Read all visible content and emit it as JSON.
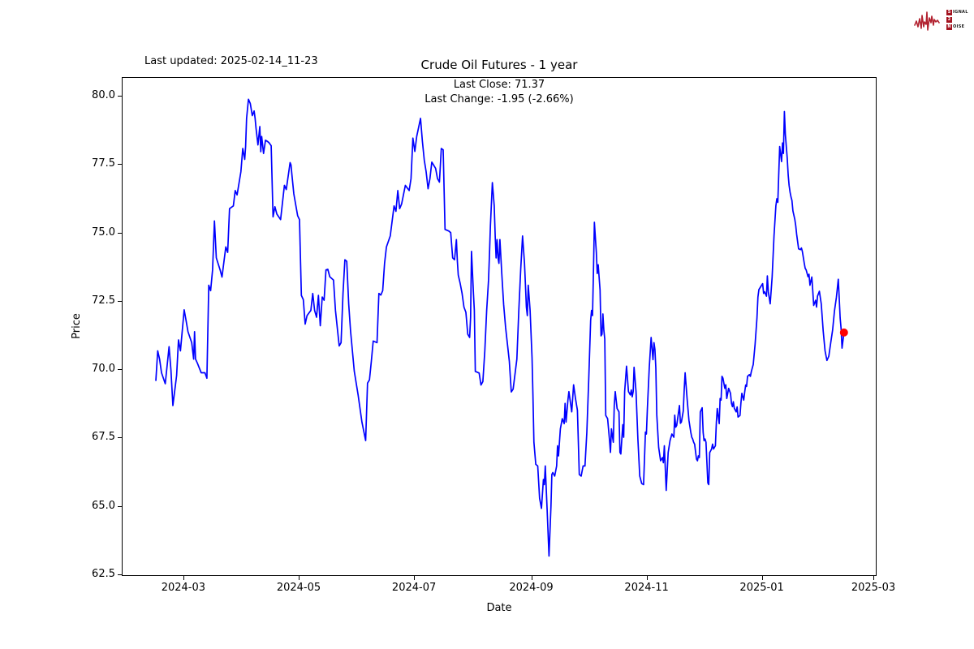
{
  "header": {
    "last_updated": "Last updated: 2025-02-14_11-23",
    "title": "Crude Oil Futures - 1 year",
    "annotation_line1": "Last Close: 71.37",
    "annotation_line2": "Last Change: -1.95 (-2.66%)"
  },
  "logo": {
    "box1": "S",
    "rest1": "IGNAL",
    "box2": "2",
    "box3": "N",
    "rest3": "OISE",
    "accent_color": "#b22230"
  },
  "chart_data": {
    "type": "line",
    "title": "Crude Oil Futures - 1 year",
    "xlabel": "Date",
    "ylabel": "Price",
    "grid": false,
    "legend": "none",
    "line_color": "#0000ff",
    "last_point_color": "#ff0000",
    "last_close": 71.37,
    "last_change": -1.95,
    "last_change_pct": -2.66,
    "x_unit": "days since 2024-02-15",
    "xlim": [
      -17.6,
      381.7
    ],
    "ylim": [
      62.44,
      80.68
    ],
    "x_ticks": [
      {
        "value": 15,
        "label": "2024-03"
      },
      {
        "value": 76,
        "label": "2024-05"
      },
      {
        "value": 137,
        "label": "2024-07"
      },
      {
        "value": 199,
        "label": "2024-09"
      },
      {
        "value": 260,
        "label": "2024-11"
      },
      {
        "value": 321,
        "label": "2025-01"
      },
      {
        "value": 380,
        "label": "2025-03"
      }
    ],
    "y_ticks": [
      62.5,
      65.0,
      67.5,
      70.0,
      72.5,
      75.0,
      77.5,
      80.0
    ],
    "points": [
      [
        0,
        69.6
      ],
      [
        1,
        70.7
      ],
      [
        2,
        70.4
      ],
      [
        3,
        69.9
      ],
      [
        5,
        69.5
      ],
      [
        7,
        70.85
      ],
      [
        8,
        70.0
      ],
      [
        9,
        68.7
      ],
      [
        11,
        69.8
      ],
      [
        12,
        71.1
      ],
      [
        13,
        70.7
      ],
      [
        15,
        72.2
      ],
      [
        16,
        71.8
      ],
      [
        17,
        71.4
      ],
      [
        19,
        71.0
      ],
      [
        20,
        70.4
      ],
      [
        20.5,
        71.4
      ],
      [
        21,
        70.4
      ],
      [
        22,
        70.25
      ],
      [
        24,
        69.9
      ],
      [
        26,
        69.9
      ],
      [
        27,
        69.7
      ],
      [
        28,
        73.1
      ],
      [
        29,
        72.9
      ],
      [
        30,
        73.66
      ],
      [
        31,
        75.45
      ],
      [
        32,
        74.1
      ],
      [
        34,
        73.66
      ],
      [
        35,
        73.4
      ],
      [
        37,
        74.5
      ],
      [
        38,
        74.3
      ],
      [
        39,
        75.9
      ],
      [
        41,
        76.0
      ],
      [
        42,
        76.56
      ],
      [
        43,
        76.4
      ],
      [
        45,
        77.25
      ],
      [
        46,
        78.1
      ],
      [
        47,
        77.7
      ],
      [
        47.5,
        78.17
      ],
      [
        48,
        79.2
      ],
      [
        49,
        79.9
      ],
      [
        50,
        79.74
      ],
      [
        51,
        79.3
      ],
      [
        52,
        79.47
      ],
      [
        52.5,
        79.2
      ],
      [
        53,
        78.85
      ],
      [
        54,
        78.23
      ],
      [
        55,
        78.9
      ],
      [
        55.5,
        77.98
      ],
      [
        56,
        78.54
      ],
      [
        57,
        77.92
      ],
      [
        58,
        78.4
      ],
      [
        59,
        78.36
      ],
      [
        60,
        78.3
      ],
      [
        61,
        78.2
      ],
      [
        62,
        75.6
      ],
      [
        63,
        75.97
      ],
      [
        64,
        75.7
      ],
      [
        66,
        75.5
      ],
      [
        68,
        76.75
      ],
      [
        69,
        76.6
      ],
      [
        71,
        77.58
      ],
      [
        71.5,
        77.5
      ],
      [
        72,
        77.12
      ],
      [
        73,
        76.44
      ],
      [
        75,
        75.64
      ],
      [
        76,
        75.5
      ],
      [
        77,
        72.73
      ],
      [
        78,
        72.57
      ],
      [
        79,
        71.68
      ],
      [
        80,
        71.99
      ],
      [
        82,
        72.18
      ],
      [
        83,
        72.8
      ],
      [
        84,
        72.18
      ],
      [
        85,
        71.93
      ],
      [
        86,
        72.73
      ],
      [
        87,
        71.62
      ],
      [
        88,
        72.67
      ],
      [
        89,
        72.55
      ],
      [
        90,
        73.66
      ],
      [
        91,
        73.68
      ],
      [
        92,
        73.41
      ],
      [
        94,
        73.29
      ],
      [
        95,
        72.18
      ],
      [
        97,
        70.88
      ],
      [
        98,
        71.0
      ],
      [
        99,
        72.8
      ],
      [
        100,
        74.03
      ],
      [
        101,
        73.97
      ],
      [
        102,
        72.42
      ],
      [
        103,
        71.43
      ],
      [
        105,
        69.95
      ],
      [
        107,
        69.09
      ],
      [
        109,
        68.1
      ],
      [
        111,
        67.42
      ],
      [
        112,
        69.52
      ],
      [
        113,
        69.64
      ],
      [
        114,
        70.32
      ],
      [
        115,
        71.06
      ],
      [
        117,
        71.0
      ],
      [
        118,
        72.8
      ],
      [
        119,
        72.74
      ],
      [
        120,
        72.9
      ],
      [
        121,
        73.9
      ],
      [
        122,
        74.5
      ],
      [
        124,
        74.9
      ],
      [
        126,
        76.0
      ],
      [
        127,
        75.8
      ],
      [
        128,
        76.56
      ],
      [
        129,
        75.9
      ],
      [
        130,
        76.07
      ],
      [
        132,
        76.75
      ],
      [
        134,
        76.56
      ],
      [
        135,
        77.0
      ],
      [
        136,
        78.48
      ],
      [
        137,
        77.99
      ],
      [
        138,
        78.54
      ],
      [
        140,
        79.2
      ],
      [
        141,
        78.36
      ],
      [
        142,
        77.68
      ],
      [
        143,
        77.25
      ],
      [
        144,
        76.63
      ],
      [
        145,
        77.0
      ],
      [
        146,
        77.6
      ],
      [
        148,
        77.37
      ],
      [
        149,
        77.0
      ],
      [
        150,
        76.87
      ],
      [
        151,
        78.1
      ],
      [
        152,
        78.05
      ],
      [
        153,
        75.14
      ],
      [
        155,
        75.08
      ],
      [
        156,
        75.02
      ],
      [
        157,
        74.1
      ],
      [
        158,
        74.03
      ],
      [
        159,
        74.77
      ],
      [
        159.5,
        73.97
      ],
      [
        160,
        73.47
      ],
      [
        161,
        73.16
      ],
      [
        162,
        72.8
      ],
      [
        163,
        72.3
      ],
      [
        164,
        72.11
      ],
      [
        165,
        71.31
      ],
      [
        166,
        71.19
      ],
      [
        166.5,
        71.93
      ],
      [
        167,
        74.34
      ],
      [
        168,
        72.8
      ],
      [
        168.5,
        72.18
      ],
      [
        169,
        69.95
      ],
      [
        171,
        69.89
      ],
      [
        172,
        69.45
      ],
      [
        173,
        69.58
      ],
      [
        174,
        70.69
      ],
      [
        175,
        72.18
      ],
      [
        176,
        73.29
      ],
      [
        176.5,
        74.28
      ],
      [
        177,
        75.27
      ],
      [
        178,
        76.85
      ],
      [
        179,
        76.0
      ],
      [
        179.5,
        74.9
      ],
      [
        180,
        74.1
      ],
      [
        180.5,
        74.77
      ],
      [
        181,
        74.1
      ],
      [
        181.5,
        73.9
      ],
      [
        182,
        74.77
      ],
      [
        183,
        73.53
      ],
      [
        184,
        72.4
      ],
      [
        185,
        71.56
      ],
      [
        186,
        70.94
      ],
      [
        187,
        70.32
      ],
      [
        188,
        69.2
      ],
      [
        189,
        69.3
      ],
      [
        191,
        70.4
      ],
      [
        192,
        72.18
      ],
      [
        193,
        73.66
      ],
      [
        194,
        74.9
      ],
      [
        195,
        73.9
      ],
      [
        195.5,
        73.16
      ],
      [
        196,
        72.3
      ],
      [
        196.5,
        71.99
      ],
      [
        197,
        73.1
      ],
      [
        198,
        72.18
      ],
      [
        199,
        70.44
      ],
      [
        199.5,
        69.08
      ],
      [
        200,
        67.36
      ],
      [
        201,
        66.55
      ],
      [
        202,
        66.49
      ],
      [
        203,
        65.31
      ],
      [
        204,
        64.94
      ],
      [
        205,
        66.0
      ],
      [
        205.5,
        65.81
      ],
      [
        206,
        66.49
      ],
      [
        207,
        64.88
      ],
      [
        208,
        63.2
      ],
      [
        209,
        65.01
      ],
      [
        209.5,
        66.18
      ],
      [
        210,
        66.25
      ],
      [
        211,
        66.12
      ],
      [
        212,
        66.49
      ],
      [
        212.5,
        67.23
      ],
      [
        213,
        66.86
      ],
      [
        214,
        67.85
      ],
      [
        214.5,
        68.04
      ],
      [
        215,
        68.22
      ],
      [
        216,
        68.04
      ],
      [
        216.5,
        68.78
      ],
      [
        217,
        68.1
      ],
      [
        218,
        68.9
      ],
      [
        218.5,
        69.21
      ],
      [
        220,
        68.47
      ],
      [
        221,
        69.46
      ],
      [
        222,
        68.96
      ],
      [
        223,
        68.53
      ],
      [
        224,
        66.18
      ],
      [
        225,
        66.12
      ],
      [
        226,
        66.49
      ],
      [
        227,
        66.49
      ],
      [
        228,
        67.72
      ],
      [
        229,
        69.7
      ],
      [
        230,
        71.81
      ],
      [
        230.5,
        72.18
      ],
      [
        231,
        71.99
      ],
      [
        231.5,
        73.66
      ],
      [
        232,
        75.4
      ],
      [
        233,
        74.3
      ],
      [
        233.5,
        73.53
      ],
      [
        234,
        73.85
      ],
      [
        235,
        72.92
      ],
      [
        235.5,
        71.25
      ],
      [
        236,
        71.31
      ],
      [
        236.5,
        72.05
      ],
      [
        237,
        71.44
      ],
      [
        237.5,
        71.13
      ],
      [
        238,
        68.34
      ],
      [
        239,
        68.22
      ],
      [
        240,
        67.42
      ],
      [
        240.5,
        66.99
      ],
      [
        241,
        67.85
      ],
      [
        242,
        67.36
      ],
      [
        242.5,
        68.72
      ],
      [
        243,
        69.21
      ],
      [
        244,
        68.59
      ],
      [
        245,
        68.47
      ],
      [
        245.5,
        66.99
      ],
      [
        246,
        66.93
      ],
      [
        247,
        68.0
      ],
      [
        247.5,
        67.54
      ],
      [
        248,
        69.21
      ],
      [
        249,
        70.14
      ],
      [
        250,
        69.21
      ],
      [
        251,
        69.09
      ],
      [
        251.5,
        69.27
      ],
      [
        252,
        69.02
      ],
      [
        252.5,
        69.21
      ],
      [
        253,
        70.1
      ],
      [
        254,
        69.21
      ],
      [
        255,
        67.48
      ],
      [
        256,
        66.12
      ],
      [
        257,
        65.85
      ],
      [
        258,
        65.81
      ],
      [
        259,
        67.73
      ],
      [
        259.5,
        67.66
      ],
      [
        260,
        68.59
      ],
      [
        261,
        70.08
      ],
      [
        262,
        71.19
      ],
      [
        263,
        70.38
      ],
      [
        263.5,
        71.0
      ],
      [
        264,
        70.75
      ],
      [
        264.5,
        70.08
      ],
      [
        265,
        68.35
      ],
      [
        266,
        67.17
      ],
      [
        267,
        66.68
      ],
      [
        268,
        66.8
      ],
      [
        268.5,
        66.61
      ],
      [
        269,
        67.23
      ],
      [
        270,
        65.6
      ],
      [
        271,
        66.98
      ],
      [
        272,
        67.42
      ],
      [
        273,
        67.66
      ],
      [
        274,
        67.54
      ],
      [
        274.5,
        68.35
      ],
      [
        275,
        67.91
      ],
      [
        275.5,
        67.97
      ],
      [
        276,
        68.2
      ],
      [
        277,
        68.7
      ],
      [
        277.5,
        68.05
      ],
      [
        278,
        68.1
      ],
      [
        279,
        68.5
      ],
      [
        279.5,
        69.3
      ],
      [
        280,
        69.9
      ],
      [
        281,
        68.96
      ],
      [
        282,
        68.16
      ],
      [
        283,
        67.72
      ],
      [
        283.5,
        67.54
      ],
      [
        284,
        67.48
      ],
      [
        284.5,
        67.36
      ],
      [
        285,
        67.29
      ],
      [
        286,
        66.74
      ],
      [
        286.5,
        66.68
      ],
      [
        287,
        66.86
      ],
      [
        287.5,
        66.8
      ],
      [
        288,
        68.47
      ],
      [
        289,
        68.62
      ],
      [
        289.5,
        67.72
      ],
      [
        290,
        67.42
      ],
      [
        290.5,
        67.48
      ],
      [
        291,
        67.36
      ],
      [
        292,
        65.87
      ],
      [
        292.5,
        65.81
      ],
      [
        293,
        66.98
      ],
      [
        294,
        67.11
      ],
      [
        294.5,
        67.29
      ],
      [
        295,
        67.11
      ],
      [
        296,
        67.23
      ],
      [
        296.5,
        68.1
      ],
      [
        297,
        68.59
      ],
      [
        298,
        68.04
      ],
      [
        298.5,
        68.96
      ],
      [
        299,
        68.9
      ],
      [
        299.5,
        69.77
      ],
      [
        300,
        69.7
      ],
      [
        301,
        69.33
      ],
      [
        301.5,
        69.46
      ],
      [
        302,
        68.96
      ],
      [
        303,
        69.33
      ],
      [
        304,
        69.15
      ],
      [
        304.5,
        68.78
      ],
      [
        305,
        68.66
      ],
      [
        305.5,
        68.84
      ],
      [
        306,
        68.6
      ],
      [
        307,
        68.47
      ],
      [
        307.5,
        68.65
      ],
      [
        308,
        68.28
      ],
      [
        309,
        68.34
      ],
      [
        309.5,
        68.78
      ],
      [
        310,
        69.15
      ],
      [
        311,
        68.9
      ],
      [
        311.5,
        69.2
      ],
      [
        312,
        69.45
      ],
      [
        312.5,
        69.4
      ],
      [
        313,
        69.77
      ],
      [
        314,
        69.83
      ],
      [
        314.5,
        69.77
      ],
      [
        315,
        69.95
      ],
      [
        316,
        70.2
      ],
      [
        317,
        70.94
      ],
      [
        318,
        71.9
      ],
      [
        318.5,
        72.67
      ],
      [
        319,
        72.94
      ],
      [
        321,
        73.16
      ],
      [
        321.5,
        72.8
      ],
      [
        322,
        72.86
      ],
      [
        323,
        72.7
      ],
      [
        323.5,
        73.44
      ],
      [
        324,
        72.86
      ],
      [
        325,
        72.42
      ],
      [
        325.5,
        72.9
      ],
      [
        326,
        73.4
      ],
      [
        327,
        74.9
      ],
      [
        328,
        76.0
      ],
      [
        328.5,
        76.26
      ],
      [
        329,
        76.13
      ],
      [
        329.5,
        77.12
      ],
      [
        330,
        78.17
      ],
      [
        331,
        77.62
      ],
      [
        331.5,
        78.3
      ],
      [
        332,
        77.92
      ],
      [
        332.5,
        79.45
      ],
      [
        333,
        78.6
      ],
      [
        334,
        77.74
      ],
      [
        334.5,
        77.12
      ],
      [
        335,
        76.75
      ],
      [
        335.5,
        76.5
      ],
      [
        336,
        76.32
      ],
      [
        336.5,
        76.2
      ],
      [
        337,
        75.82
      ],
      [
        338,
        75.51
      ],
      [
        338.5,
        75.27
      ],
      [
        339,
        74.96
      ],
      [
        340,
        74.43
      ],
      [
        341,
        74.4
      ],
      [
        341.5,
        74.46
      ],
      [
        342,
        74.34
      ],
      [
        343,
        73.9
      ],
      [
        343.5,
        73.72
      ],
      [
        344,
        73.66
      ],
      [
        345,
        73.41
      ],
      [
        345.5,
        73.5
      ],
      [
        346,
        73.1
      ],
      [
        347,
        73.4
      ],
      [
        347.5,
        72.92
      ],
      [
        348,
        72.36
      ],
      [
        349,
        72.55
      ],
      [
        349.5,
        72.3
      ],
      [
        350,
        72.7
      ],
      [
        351,
        72.88
      ],
      [
        352,
        72.42
      ],
      [
        352.5,
        71.93
      ],
      [
        353,
        71.43
      ],
      [
        354,
        70.7
      ],
      [
        355,
        70.35
      ],
      [
        356,
        70.5
      ],
      [
        357,
        71.0
      ],
      [
        358,
        71.46
      ],
      [
        359,
        72.16
      ],
      [
        360,
        72.66
      ],
      [
        361,
        73.32
      ],
      [
        361.5,
        72.6
      ],
      [
        362,
        71.9
      ],
      [
        362.5,
        71.5
      ],
      [
        363,
        70.8
      ],
      [
        364,
        71.37
      ]
    ]
  }
}
